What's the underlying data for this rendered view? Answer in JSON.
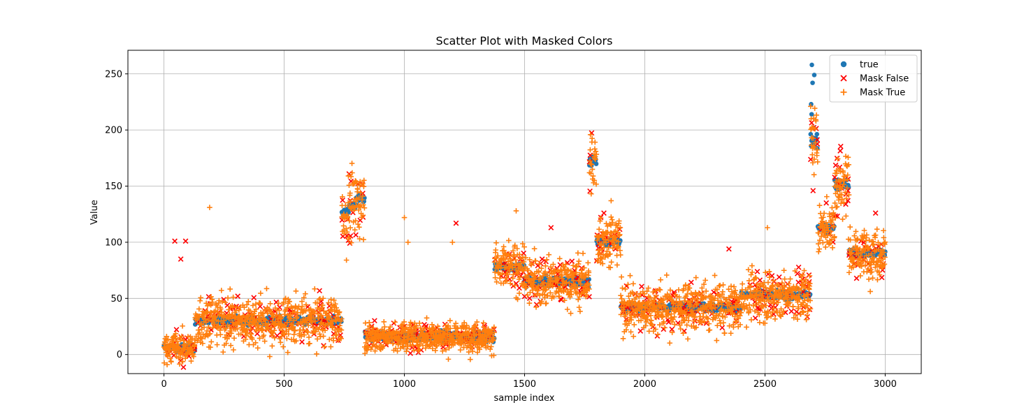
{
  "chart_data": {
    "type": "scatter",
    "title": "Scatter Plot with Masked Colors",
    "xlabel": "sample index",
    "ylabel": "Value",
    "xlim": [
      -150,
      3150
    ],
    "ylim": [
      -17,
      271
    ],
    "xticks": [
      0,
      500,
      1000,
      1500,
      2000,
      2500,
      3000
    ],
    "yticks": [
      0,
      50,
      100,
      150,
      200,
      250
    ],
    "grid": true,
    "legend_position": "top-right",
    "series": [
      {
        "name": "true",
        "marker": "circle",
        "color": "#1f77b4",
        "segments": [
          {
            "x": [
              0,
              130
            ],
            "level": 6,
            "spread": 4
          },
          {
            "x": [
              130,
              740
            ],
            "level": 30,
            "spread": 4
          },
          {
            "x": [
              740,
              770
            ],
            "level": 126,
            "spread": 5
          },
          {
            "x": [
              770,
              800
            ],
            "level": 132,
            "spread": 5
          },
          {
            "x": [
              800,
              835
            ],
            "level": 139,
            "spread": 4
          },
          {
            "x": [
              835,
              1375
            ],
            "level": 16,
            "spread": 5
          },
          {
            "x": [
              1375,
              1500
            ],
            "level": 78,
            "spread": 4
          },
          {
            "x": [
              1500,
              1770
            ],
            "level": 65,
            "spread": 5
          },
          {
            "x": [
              1770,
              1800
            ],
            "level": 172,
            "spread": 4
          },
          {
            "x": [
              1800,
              1900
            ],
            "level": 101,
            "spread": 4
          },
          {
            "x": [
              1900,
              2400
            ],
            "level": 42,
            "spread": 4
          },
          {
            "x": [
              2400,
              2690
            ],
            "level": 53,
            "spread": 4
          },
          {
            "x": [
              2690,
              2720
            ],
            "level": 190,
            "spread": 10
          },
          {
            "x": [
              2720,
              2790
            ],
            "level": 113,
            "spread": 4
          },
          {
            "x": [
              2790,
              2850
            ],
            "level": 152,
            "spread": 5
          },
          {
            "x": [
              2850,
              3000
            ],
            "level": 90,
            "spread": 4
          }
        ],
        "outliers": [
          [
            2695,
            258
          ],
          [
            2705,
            249
          ],
          [
            2698,
            242
          ],
          [
            2692,
            223
          ],
          [
            2694,
            214
          ],
          [
            2703,
            202
          ]
        ]
      },
      {
        "name": "Mask False",
        "marker": "x",
        "color": "#ff0000",
        "scatter_fraction": 0.06,
        "outliers": [
          [
            45,
            101
          ],
          [
            90,
            101
          ],
          [
            70,
            85
          ],
          [
            1215,
            117
          ],
          [
            1610,
            113
          ],
          [
            1830,
            126
          ],
          [
            2700,
            146
          ],
          [
            2960,
            126
          ],
          [
            2810,
            152
          ],
          [
            2845,
            146
          ],
          [
            2755,
            135
          ],
          [
            2350,
            94
          ]
        ]
      },
      {
        "name": "Mask True",
        "marker": "plus",
        "color": "#ff7f0e",
        "scatter_fraction": 0.22,
        "outliers": [
          [
            190,
            131
          ],
          [
            785,
            152
          ],
          [
            1000,
            122
          ],
          [
            1015,
            100
          ],
          [
            1200,
            100
          ],
          [
            1465,
            128
          ],
          [
            1790,
            155
          ],
          [
            1860,
            137
          ],
          [
            2510,
            113
          ],
          [
            2705,
            174
          ]
        ]
      }
    ]
  }
}
